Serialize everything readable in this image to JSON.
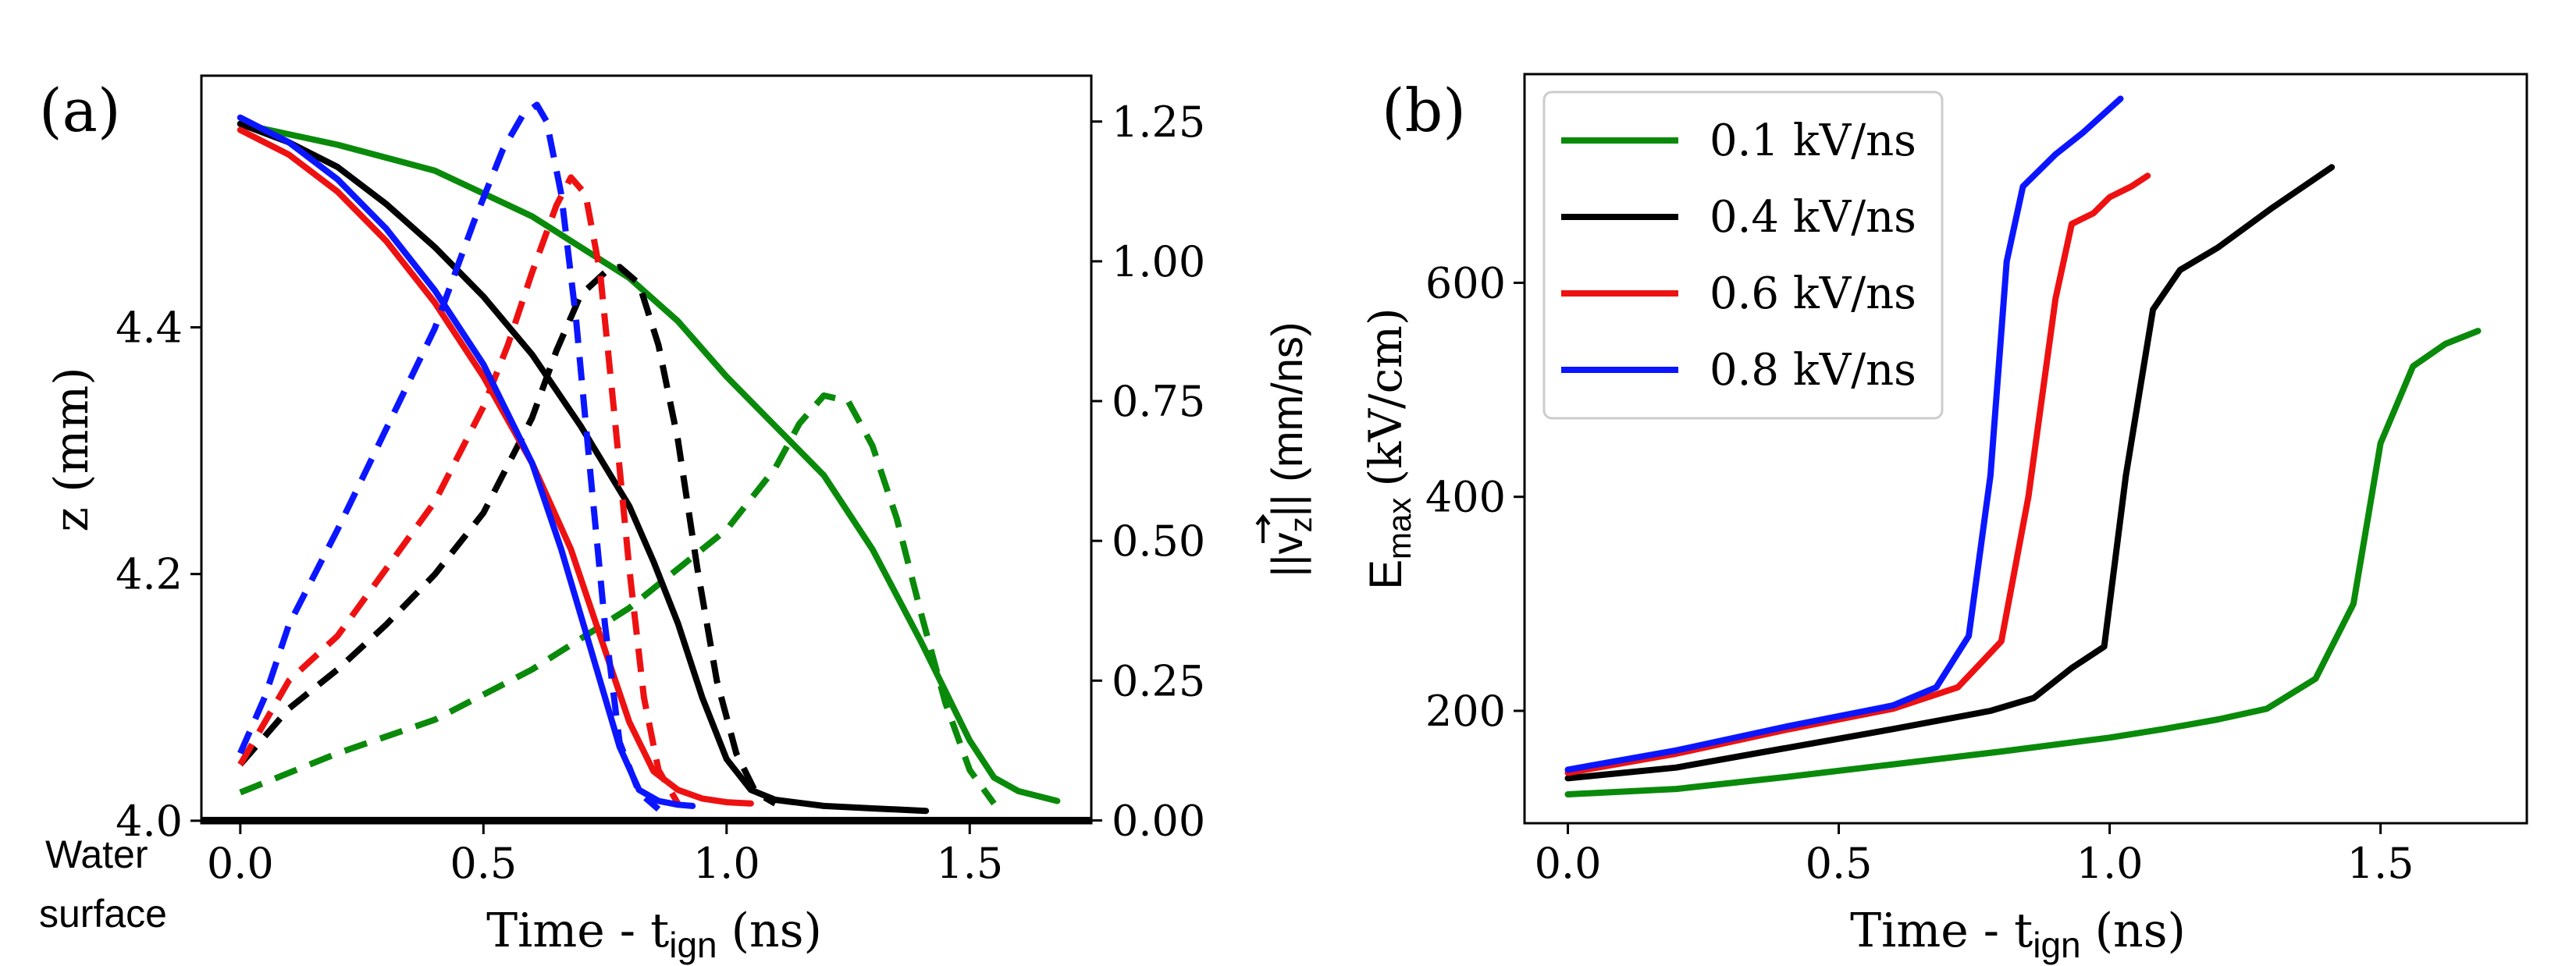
{
  "figure": {
    "water_label_line1": "Water",
    "water_label_line2": "surface"
  },
  "chart_data": [
    {
      "id": "a",
      "type": "line",
      "panel_label": "(a)",
      "title": "",
      "xlabel": "Time - t",
      "xlabel_sub": "ign",
      "xlabel_unit": "(ns)",
      "ylabel": "z (mm)",
      "y2label": "||v_z|| (mm/ns)",
      "y2label_pre": "||",
      "y2label_v": "v",
      "y2label_sub": "z",
      "y2label_post": "|| (mm/ns)",
      "xlim": [
        -0.08,
        1.75
      ],
      "ylim": [
        3.998,
        4.604
      ],
      "y2lim": [
        -0.005,
        1.332
      ],
      "xticks": [
        "0.0",
        "0.5",
        "1.0",
        "1.5"
      ],
      "yticks": [
        "4.0",
        "4.2",
        "4.4"
      ],
      "y2ticks": [
        "0.00",
        "0.25",
        "0.50",
        "0.75",
        "1.00",
        "1.25"
      ],
      "grid": false,
      "baseline_z": 4.0,
      "series": [
        {
          "name": "0.1 kV/ns",
          "color": "#0a8a0a",
          "style": "solid",
          "axis": "left",
          "x": [
            0.0,
            0.2,
            0.4,
            0.6,
            0.8,
            0.9,
            1.0,
            1.1,
            1.2,
            1.3,
            1.4,
            1.5,
            1.55,
            1.6,
            1.68
          ],
          "y": [
            4.565,
            4.548,
            4.527,
            4.49,
            4.44,
            4.405,
            4.36,
            4.32,
            4.28,
            4.22,
            4.145,
            4.065,
            4.035,
            4.024,
            4.016
          ]
        },
        {
          "name": "0.1 kV/ns",
          "color": "#0a8a0a",
          "style": "dashed",
          "axis": "right",
          "x": [
            0.0,
            0.2,
            0.4,
            0.6,
            0.8,
            1.0,
            1.1,
            1.15,
            1.2,
            1.25,
            1.3,
            1.35,
            1.4,
            1.45,
            1.5,
            1.55
          ],
          "y": [
            0.05,
            0.12,
            0.18,
            0.27,
            0.38,
            0.52,
            0.63,
            0.71,
            0.76,
            0.75,
            0.67,
            0.54,
            0.37,
            0.21,
            0.09,
            0.03
          ]
        },
        {
          "name": "0.4 kV/ns",
          "color": "#000000",
          "style": "solid",
          "axis": "left",
          "x": [
            0.0,
            0.1,
            0.2,
            0.3,
            0.4,
            0.5,
            0.6,
            0.7,
            0.8,
            0.85,
            0.9,
            0.95,
            1.0,
            1.05,
            1.1,
            1.2,
            1.3,
            1.41
          ],
          "y": [
            4.565,
            4.55,
            4.53,
            4.5,
            4.465,
            4.425,
            4.378,
            4.32,
            4.255,
            4.21,
            4.16,
            4.1,
            4.05,
            4.025,
            4.017,
            4.012,
            4.01,
            4.008
          ]
        },
        {
          "name": "0.4 kV/ns",
          "color": "#000000",
          "style": "dashed",
          "axis": "right",
          "x": [
            0.0,
            0.1,
            0.2,
            0.3,
            0.4,
            0.5,
            0.6,
            0.65,
            0.7,
            0.75,
            0.78,
            0.82,
            0.86,
            0.9,
            0.94,
            0.98,
            1.02,
            1.06,
            1.1
          ],
          "y": [
            0.1,
            0.2,
            0.27,
            0.35,
            0.44,
            0.55,
            0.72,
            0.84,
            0.94,
            0.98,
            0.99,
            0.96,
            0.85,
            0.68,
            0.45,
            0.25,
            0.12,
            0.05,
            0.03
          ]
        },
        {
          "name": "0.6 kV/ns",
          "color": "#ee1111",
          "style": "solid",
          "axis": "left",
          "x": [
            0.0,
            0.1,
            0.2,
            0.3,
            0.4,
            0.5,
            0.6,
            0.68,
            0.74,
            0.8,
            0.85,
            0.9,
            0.95,
            1.0,
            1.05
          ],
          "y": [
            4.56,
            4.54,
            4.51,
            4.47,
            4.42,
            4.36,
            4.29,
            4.22,
            4.15,
            4.08,
            4.04,
            4.025,
            4.018,
            4.015,
            4.014
          ]
        },
        {
          "name": "0.6 kV/ns",
          "color": "#ee1111",
          "style": "dashed",
          "axis": "right",
          "x": [
            0.0,
            0.1,
            0.2,
            0.3,
            0.4,
            0.5,
            0.55,
            0.6,
            0.65,
            0.68,
            0.71,
            0.74,
            0.77,
            0.8,
            0.83,
            0.86,
            0.9
          ],
          "y": [
            0.1,
            0.25,
            0.33,
            0.45,
            0.57,
            0.74,
            0.85,
            0.98,
            1.1,
            1.15,
            1.12,
            0.98,
            0.72,
            0.45,
            0.22,
            0.09,
            0.03
          ]
        },
        {
          "name": "0.8 kV/ns",
          "color": "#0b16ff",
          "style": "solid",
          "axis": "left",
          "x": [
            0.0,
            0.1,
            0.2,
            0.3,
            0.4,
            0.5,
            0.6,
            0.66,
            0.72,
            0.78,
            0.82,
            0.86,
            0.9,
            0.93
          ],
          "y": [
            4.57,
            4.55,
            4.52,
            4.48,
            4.43,
            4.37,
            4.29,
            4.22,
            4.14,
            4.06,
            4.025,
            4.016,
            4.013,
            4.012
          ]
        },
        {
          "name": "0.8 kV/ns",
          "color": "#0b16ff",
          "style": "dashed",
          "axis": "right",
          "x": [
            0.0,
            0.05,
            0.1,
            0.2,
            0.3,
            0.4,
            0.48,
            0.54,
            0.58,
            0.61,
            0.63,
            0.66,
            0.69,
            0.72,
            0.75,
            0.78,
            0.82,
            0.86
          ],
          "y": [
            0.12,
            0.22,
            0.35,
            0.52,
            0.7,
            0.88,
            1.07,
            1.2,
            1.26,
            1.28,
            1.25,
            1.12,
            0.9,
            0.62,
            0.35,
            0.14,
            0.05,
            0.02
          ]
        }
      ]
    },
    {
      "id": "b",
      "type": "line",
      "panel_label": "(b)",
      "title": "",
      "xlabel": "Time - t",
      "xlabel_sub": "ign",
      "xlabel_unit": "(ns)",
      "ylabel": "E_max (kV/cm)",
      "ylabel_main": "E",
      "ylabel_sub": "max",
      "ylabel_unit": "(kV/cm)",
      "xlim": [
        -0.08,
        1.77
      ],
      "ylim": [
        95,
        795
      ],
      "xticks": [
        "0.0",
        "0.5",
        "1.0",
        "1.5"
      ],
      "yticks": [
        "200",
        "400",
        "600"
      ],
      "grid": false,
      "legend_position": "top-left",
      "legend": [
        "0.1 kV/ns",
        "0.4 kV/ns",
        "0.6 kV/ns",
        "0.8 kV/ns"
      ],
      "series": [
        {
          "name": "0.1 kV/ns",
          "color": "#0a8a0a",
          "x": [
            0.0,
            0.2,
            0.4,
            0.6,
            0.8,
            1.0,
            1.1,
            1.2,
            1.29,
            1.38,
            1.45,
            1.5,
            1.56,
            1.62,
            1.68
          ],
          "y": [
            122,
            127,
            138,
            150,
            162,
            175,
            183,
            192,
            202,
            230,
            300,
            450,
            522,
            543,
            555
          ]
        },
        {
          "name": "0.4 kV/ns",
          "color": "#000000",
          "x": [
            0.0,
            0.2,
            0.4,
            0.6,
            0.78,
            0.86,
            0.93,
            0.99,
            1.03,
            1.08,
            1.13,
            1.2,
            1.3,
            1.41
          ],
          "y": [
            137,
            147,
            165,
            183,
            200,
            212,
            240,
            260,
            420,
            575,
            612,
            633,
            670,
            708
          ]
        },
        {
          "name": "0.6 kV/ns",
          "color": "#ee1111",
          "x": [
            0.0,
            0.2,
            0.4,
            0.6,
            0.72,
            0.8,
            0.85,
            0.9,
            0.93,
            0.97,
            1.0,
            1.04,
            1.07
          ],
          "y": [
            142,
            160,
            182,
            202,
            222,
            265,
            400,
            585,
            655,
            665,
            680,
            690,
            700
          ]
        },
        {
          "name": "0.8 kV/ns",
          "color": "#0b16ff",
          "x": [
            0.0,
            0.2,
            0.4,
            0.6,
            0.68,
            0.74,
            0.78,
            0.81,
            0.84,
            0.87,
            0.9,
            0.95,
            1.02
          ],
          "y": [
            145,
            163,
            185,
            205,
            222,
            270,
            420,
            620,
            690,
            705,
            720,
            740,
            772
          ]
        }
      ]
    }
  ]
}
